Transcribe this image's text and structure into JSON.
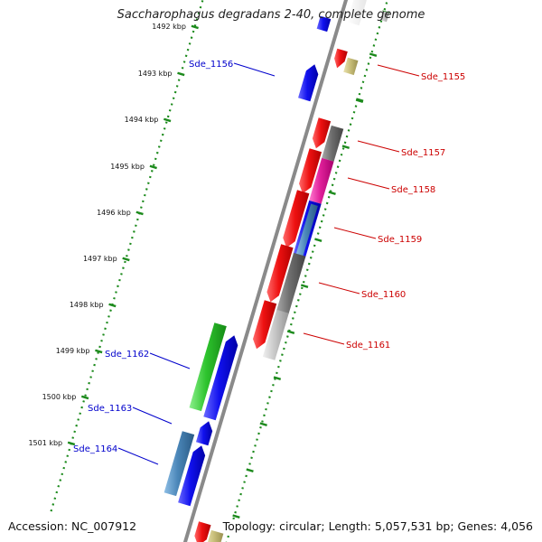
{
  "title": "Saccharophagus degradans 2-40, complete genome",
  "footer": {
    "accession": "Accession: NC_007912",
    "topology": "Topology: circular; Length: 5,057,531 bp; Genes: 4,056"
  },
  "tick_labels": [
    "1492 kbp",
    "1493 kbp",
    "1494 kbp",
    "1495 kbp",
    "1496 kbp",
    "1497 kbp",
    "1498 kbp",
    "1499 kbp",
    "1500 kbp",
    "1501 kbp"
  ],
  "colors": {
    "backbone": "#8a8a8a",
    "dotted_ring": "#1c8a1c",
    "forward_label": "#cc0000",
    "reverse_label": "#0000cc",
    "red": "#ee1111",
    "blue": "#1111ee",
    "gray": "#6e6e6e",
    "light_gray": "#c8c8c8",
    "khaki": "#c9bf7a",
    "magenta": "#e0209a",
    "steel_blue": "#4a86b8",
    "green": "#2ec42e"
  },
  "genes": [
    {
      "name": "Sde_1155",
      "strand": "forward",
      "color": "red",
      "label": "Sde_1155"
    },
    {
      "name": "Sde_1156",
      "strand": "reverse",
      "color": "blue",
      "label": "Sde_1156"
    },
    {
      "name": "Sde_1157",
      "strand": "forward",
      "color": "gray",
      "label": "Sde_1157"
    },
    {
      "name": "Sde_1158",
      "strand": "forward",
      "color": "magenta",
      "label": "Sde_1158"
    },
    {
      "name": "Sde_1159",
      "strand": "forward",
      "color": "blue",
      "label": "Sde_1159"
    },
    {
      "name": "Sde_1160",
      "strand": "forward",
      "color": "gray",
      "label": "Sde_1160"
    },
    {
      "name": "Sde_1161",
      "strand": "forward",
      "color": "light_gray",
      "label": "Sde_1161"
    },
    {
      "name": "Sde_1162",
      "strand": "reverse",
      "color": "green",
      "label": "Sde_1162"
    },
    {
      "name": "Sde_1163",
      "strand": "reverse",
      "color": "blue",
      "label": "Sde_1163"
    },
    {
      "name": "Sde_1164",
      "strand": "reverse",
      "color": "steel_blue",
      "label": "Sde_1164"
    }
  ]
}
